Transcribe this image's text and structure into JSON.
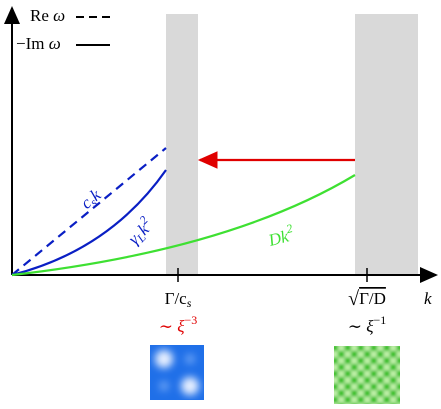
{
  "legend": {
    "re": {
      "prefix": "Re",
      "symbol": "ω"
    },
    "im": {
      "prefix": "−Im",
      "symbol": "ω"
    }
  },
  "curves": {
    "sound": {
      "base": "c",
      "sub": "s",
      "rest": "k"
    },
    "damping": {
      "base": "γ",
      "sub": "L",
      "rest": "k",
      "sup": "2"
    },
    "diffusion": {
      "base": "Dk",
      "sup": "2"
    }
  },
  "axis": {
    "x_label": "k"
  },
  "ticks": [
    {
      "label": {
        "base": "Γ/c",
        "sub": "s"
      },
      "scale": {
        "base": "∼ ξ",
        "sup": "−3"
      }
    },
    {
      "label": {
        "root": "√",
        "base": "Γ/D"
      },
      "scale": {
        "base": "∼ ξ",
        "sup": "−1"
      }
    }
  ]
}
